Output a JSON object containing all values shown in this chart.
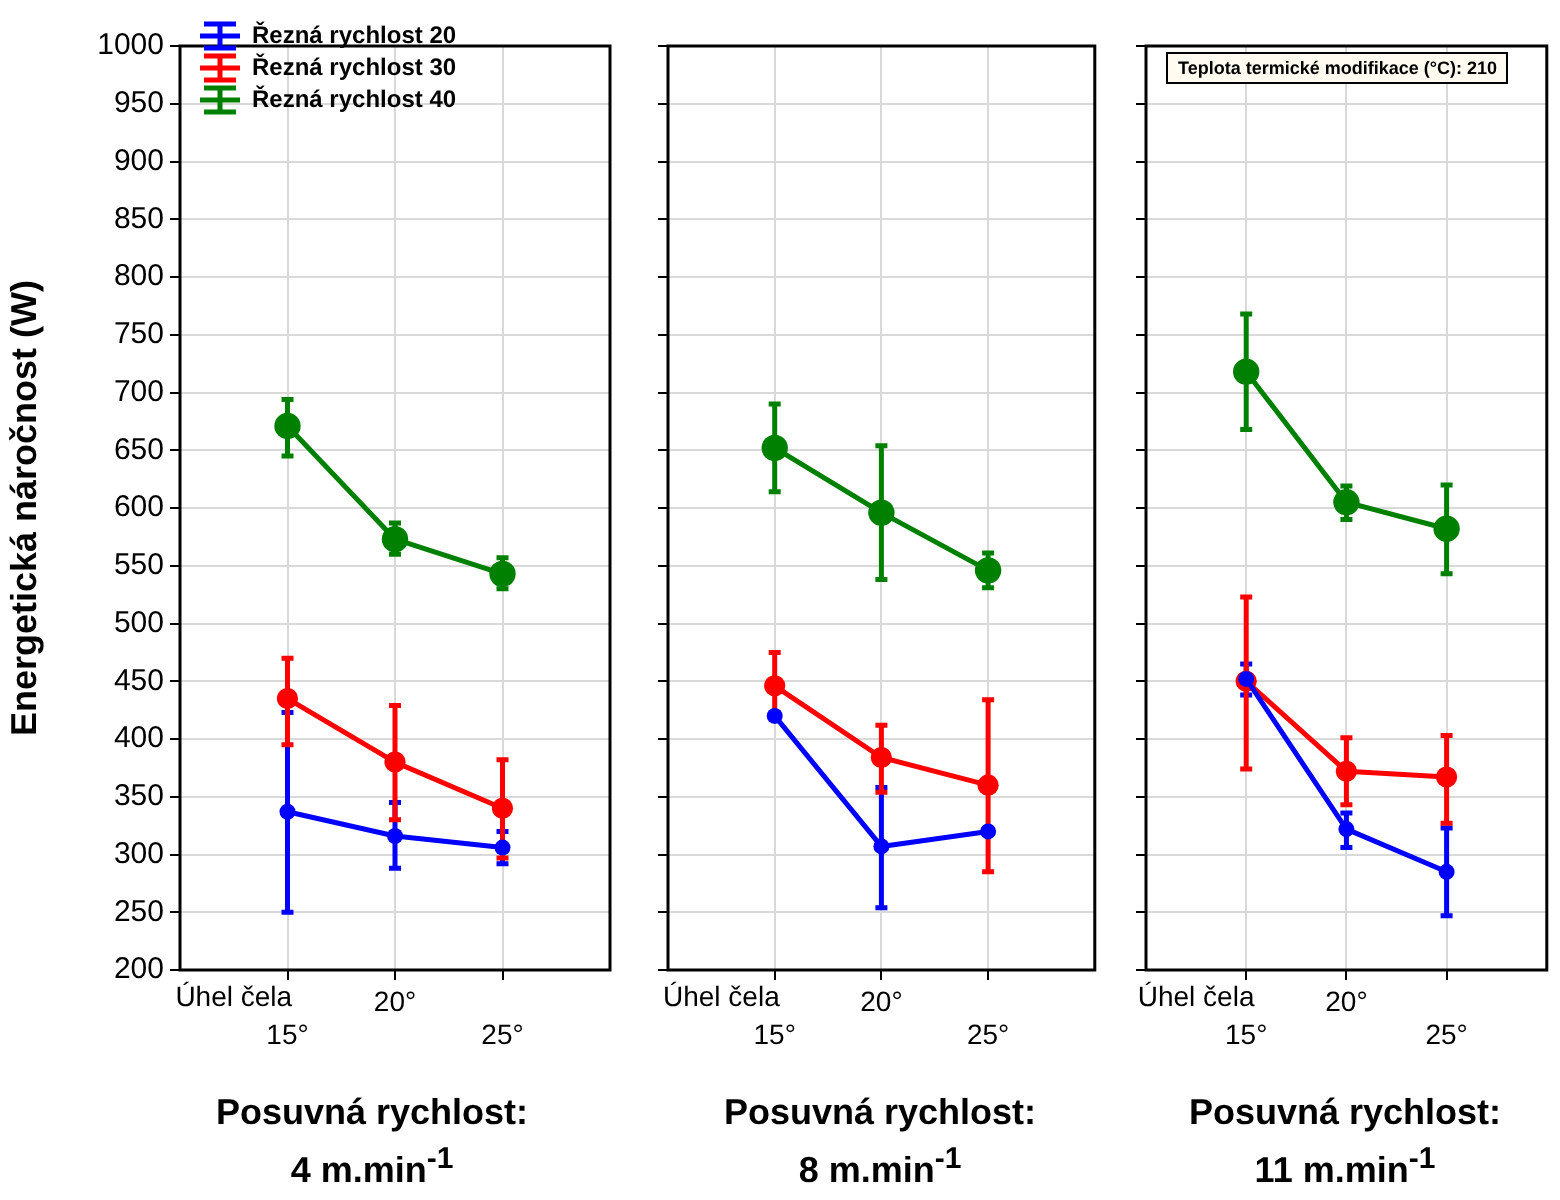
{
  "chart_data": [
    {
      "type": "line",
      "title": "Posuvná rychlost:\n4 m.min$^{-1}$",
      "xlabel": "Úhel čela",
      "ylabel": "Energetická náročnost (W)",
      "categories": [
        "15°",
        "20°",
        "25°"
      ],
      "ylim": [
        200,
        1000
      ],
      "yticks": [
        200,
        250,
        300,
        350,
        400,
        450,
        500,
        550,
        600,
        650,
        700,
        750,
        800,
        850,
        900,
        950,
        1000
      ],
      "grid": true,
      "marker": "circle",
      "legend": "top left",
      "series": [
        {
          "name": "Řezná rychlost 20",
          "color": "#0000ff",
          "values": [
            337,
            316,
            306
          ],
          "errors": [
            [
              250,
              423
            ],
            [
              288,
              345
            ],
            [
              292,
              320
            ]
          ]
        },
        {
          "name": "Řezná rychlost 30",
          "color": "#ff0000",
          "values": [
            435,
            380,
            340
          ],
          "errors": [
            [
              395,
              470
            ],
            [
              330,
              429
            ],
            [
              297,
              382
            ]
          ]
        },
        {
          "name": "Řezná rychlost 40",
          "color": "#008000",
          "values": [
            671,
            573,
            543
          ],
          "errors": [
            [
              645,
              694
            ],
            [
              560,
              587
            ],
            [
              530,
              557
            ]
          ]
        }
      ]
    },
    {
      "type": "line",
      "title": "Posuvná rychlost:\n8 m.min$^{-1}$",
      "xlabel": "Úhel čela",
      "categories": [
        "15°",
        "20°",
        "25°"
      ],
      "ylim": [
        200,
        1000
      ],
      "yticks": [
        200,
        250,
        300,
        350,
        400,
        450,
        500,
        550,
        600,
        650,
        700,
        750,
        800,
        850,
        900,
        950,
        1000
      ],
      "grid": true,
      "marker": "circle",
      "tick_labels": "x",
      "series": [
        {
          "color": "#0000ff",
          "values": [
            420,
            307,
            320
          ],
          "errors": [
            null,
            [
              254,
              358
            ],
            null
          ]
        },
        {
          "color": "#ff0000",
          "values": [
            446,
            384,
            360
          ],
          "errors": [
            [
              417,
              475
            ],
            [
              354,
              412
            ],
            [
              285,
              434
            ]
          ]
        },
        {
          "color": "#008000",
          "values": [
            652,
            596,
            546
          ],
          "errors": [
            [
              614,
              690
            ],
            [
              538,
              654
            ],
            [
              531,
              561
            ]
          ]
        }
      ]
    },
    {
      "type": "line",
      "title": "Posuvná rychlost:\n11 m.min$^{-1}$",
      "xlabel": "Úhel čela",
      "annotations": [
        "Teplota termické modifikace (°C): 210"
      ],
      "categories": [
        "15°",
        "20°",
        "25°"
      ],
      "ylim": [
        200,
        1000
      ],
      "yticks": [
        200,
        250,
        300,
        350,
        400,
        450,
        500,
        550,
        600,
        650,
        700,
        750,
        800,
        850,
        900,
        950,
        1000
      ],
      "grid": true,
      "marker": "circle",
      "tick_labels": "x",
      "series": [
        {
          "color": "#0000ff",
          "values": [
            452,
            322,
            285
          ],
          "errors": [
            [
              438,
              465
            ],
            [
              306,
              336
            ],
            [
              247,
              323
            ]
          ]
        },
        {
          "color": "#ff0000",
          "values": [
            450,
            372,
            367
          ],
          "errors": [
            [
              374,
              523
            ],
            [
              343,
              401
            ],
            [
              327,
              403
            ]
          ]
        },
        {
          "color": "#008000",
          "values": [
            718,
            605,
            582
          ],
          "errors": [
            [
              668,
              768
            ],
            [
              590,
              619
            ],
            [
              543,
              620
            ]
          ]
        }
      ]
    }
  ]
}
